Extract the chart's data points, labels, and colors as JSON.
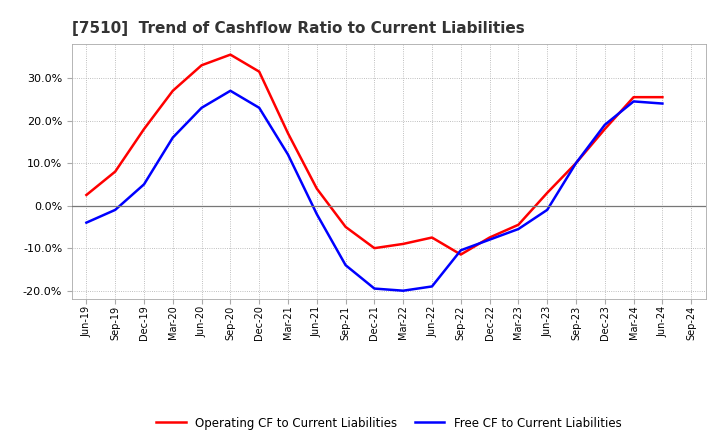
{
  "title": "[7510]  Trend of Cashflow Ratio to Current Liabilities",
  "x_labels": [
    "Jun-19",
    "Sep-19",
    "Dec-19",
    "Mar-20",
    "Jun-20",
    "Sep-20",
    "Dec-20",
    "Mar-21",
    "Jun-21",
    "Sep-21",
    "Dec-21",
    "Mar-22",
    "Jun-22",
    "Sep-22",
    "Dec-22",
    "Mar-23",
    "Jun-23",
    "Sep-23",
    "Dec-23",
    "Mar-24",
    "Jun-24",
    "Sep-24"
  ],
  "operating_cf": [
    2.5,
    8.0,
    18.0,
    27.0,
    33.0,
    35.5,
    31.5,
    17.0,
    4.0,
    -5.0,
    -10.0,
    -9.0,
    -7.5,
    -11.5,
    -7.5,
    -4.5,
    3.0,
    10.0,
    18.0,
    25.5,
    25.5,
    null
  ],
  "free_cf": [
    -4.0,
    -1.0,
    5.0,
    16.0,
    23.0,
    27.0,
    23.0,
    12.0,
    -2.0,
    -14.0,
    -19.5,
    -20.0,
    -19.0,
    -10.5,
    -8.0,
    -5.5,
    -1.0,
    10.0,
    19.0,
    24.5,
    24.0,
    null
  ],
  "ylim": [
    -22,
    38
  ],
  "yticks": [
    -20.0,
    -10.0,
    0.0,
    10.0,
    20.0,
    30.0
  ],
  "operating_color": "#FF0000",
  "free_color": "#0000FF",
  "background_color": "#FFFFFF",
  "plot_bg_color": "#FFFFFF",
  "grid_color": "#AAAAAA",
  "legend_operating": "Operating CF to Current Liabilities",
  "legend_free": "Free CF to Current Liabilities"
}
